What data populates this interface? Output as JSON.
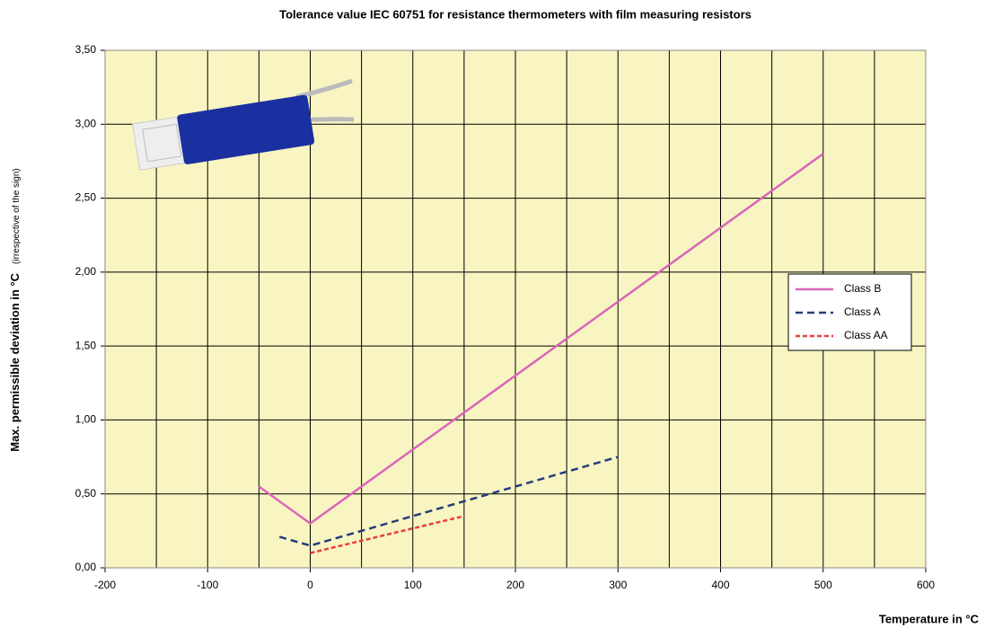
{
  "chart_data": {
    "type": "line",
    "title": "Tolerance value IEC 60751 for resistance thermometers with film measuring resistors",
    "xlabel": "Temperature in °C",
    "ylabel": "Max. permissible deviation in °C",
    "ylabel_note": "(irrespective of the sign)",
    "xlim": [
      -200,
      600
    ],
    "xticks": [
      -200,
      -100,
      0,
      100,
      200,
      300,
      400,
      500,
      600
    ],
    "x_minor_grid": [
      -150,
      -50,
      50,
      150,
      250,
      350,
      450,
      550
    ],
    "ylim": [
      0,
      3.5
    ],
    "yticks": [
      {
        "value": 0,
        "label": "0,00"
      },
      {
        "value": 0.5,
        "label": "0,50"
      },
      {
        "value": 1,
        "label": "1,00"
      },
      {
        "value": 1.5,
        "label": "1,50"
      },
      {
        "value": 2,
        "label": "2,00"
      },
      {
        "value": 2.5,
        "label": "2,50"
      },
      {
        "value": 3,
        "label": "3,00"
      },
      {
        "value": 3.5,
        "label": "3,50"
      }
    ],
    "grid": true,
    "legend": "right",
    "plot_background": "#f8f5c2",
    "series": [
      {
        "name": "Class B",
        "color": "#d966b8",
        "dash": "solid",
        "x": [
          -50,
          0,
          500
        ],
        "values": [
          0.55,
          0.3,
          2.8
        ]
      },
      {
        "name": "Class A",
        "color": "#243f7a",
        "dash": "dashed",
        "x": [
          -30,
          0,
          300
        ],
        "values": [
          0.21,
          0.15,
          0.75
        ]
      },
      {
        "name": "Class AA",
        "color": "#e8403a",
        "dash": "dotted",
        "x": [
          0,
          150
        ],
        "values": [
          0.1,
          0.35
        ]
      }
    ]
  }
}
